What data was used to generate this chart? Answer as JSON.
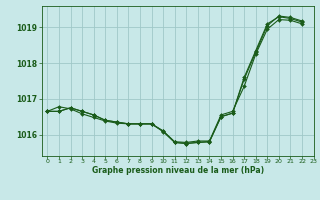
{
  "title": "Graphe pression niveau de la mer (hPa)",
  "background_color": "#c8e8e8",
  "grid_color": "#a0c8c8",
  "line_color": "#1a5c1a",
  "xlim": [
    -0.5,
    23
  ],
  "ylim": [
    1015.4,
    1019.6
  ],
  "yticks": [
    1016,
    1017,
    1018,
    1019
  ],
  "xticks": [
    0,
    1,
    2,
    3,
    4,
    5,
    6,
    7,
    8,
    9,
    10,
    11,
    12,
    13,
    14,
    15,
    16,
    17,
    18,
    19,
    20,
    21,
    22,
    23
  ],
  "series": [
    {
      "x": [
        0,
        1,
        2,
        3,
        4,
        5,
        6,
        7,
        8,
        9,
        10,
        11,
        12,
        13,
        14,
        15,
        16,
        17,
        18,
        19,
        20,
        21,
        22
      ],
      "y": [
        1016.65,
        1016.65,
        1016.75,
        1016.65,
        1016.55,
        1016.4,
        1016.35,
        1016.3,
        1016.3,
        1016.3,
        1016.1,
        1015.8,
        1015.78,
        1015.82,
        1015.82,
        1016.55,
        1016.65,
        1017.35,
        1018.25,
        1018.95,
        1019.22,
        1019.2,
        1019.1
      ]
    },
    {
      "x": [
        0,
        1,
        2,
        3,
        4,
        5,
        6,
        7,
        8,
        9,
        10,
        11,
        12,
        13,
        14,
        15,
        16,
        17,
        18,
        19,
        20,
        21,
        22
      ],
      "y": [
        1016.65,
        1016.65,
        1016.75,
        1016.65,
        1016.55,
        1016.4,
        1016.35,
        1016.3,
        1016.3,
        1016.3,
        1016.1,
        1015.78,
        1015.75,
        1015.78,
        1015.8,
        1016.5,
        1016.6,
        1017.6,
        1018.35,
        1019.1,
        1019.3,
        1019.25,
        1019.15
      ]
    },
    {
      "x": [
        0,
        1,
        2,
        3,
        4,
        5,
        6,
        7,
        8,
        9,
        10,
        11,
        12,
        13,
        14,
        15,
        16,
        17,
        18,
        19,
        20,
        21,
        22
      ],
      "y": [
        1016.65,
        1016.78,
        1016.72,
        1016.58,
        1016.48,
        1016.38,
        1016.32,
        1016.3,
        1016.3,
        1016.3,
        1016.08,
        1015.78,
        1015.75,
        1015.78,
        1015.8,
        1016.5,
        1016.6,
        1017.55,
        1018.3,
        1019.05,
        1019.32,
        1019.28,
        1019.18
      ]
    }
  ]
}
